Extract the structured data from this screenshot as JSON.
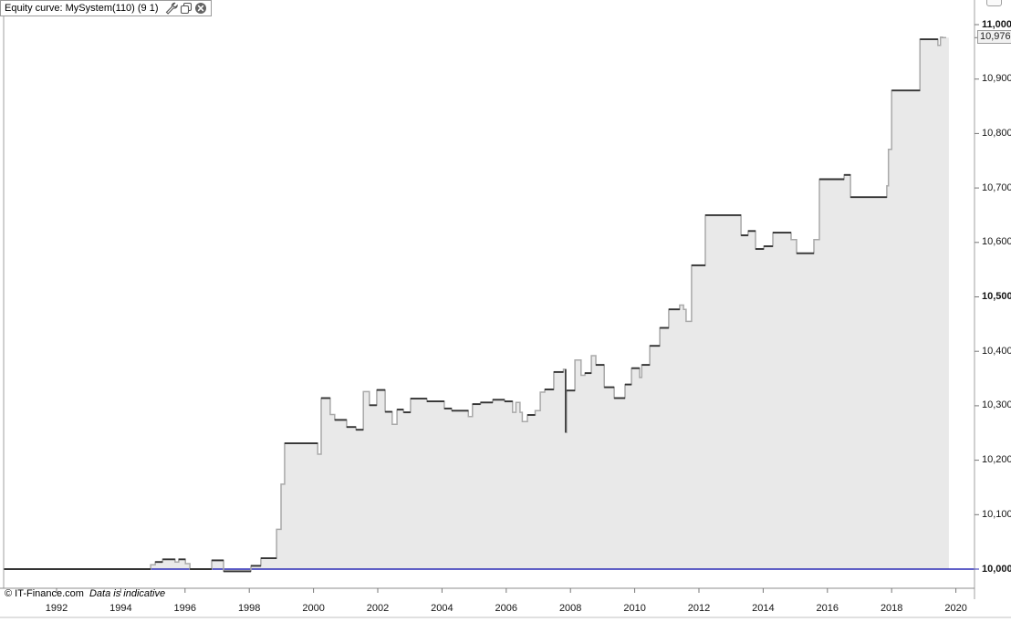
{
  "panel": {
    "title": "Equity curve: MySystem(110) (9 1)",
    "icons": [
      "wrench-icon",
      "duplicate-icon",
      "close-icon"
    ],
    "top_right_icon": "panel-handle-icon"
  },
  "footer": {
    "copyright": "© IT-Finance.com",
    "note": "Data is indicative"
  },
  "price_marker": {
    "label": "10,976"
  },
  "colors": {
    "baseline": "#2b2bb5",
    "curve_dark": "#333333",
    "curve_light": "#a9a9a9",
    "fill": "#e9e9e9",
    "border_gray": "#a0a0a0",
    "axis_line": "#8c8c8c",
    "bottom_line": "#c0c0c0",
    "marker_bg": "#f1f1f1",
    "text": "#141414"
  },
  "chart_data": {
    "type": "area",
    "interpolation": "step-after",
    "title": "Equity curve: MySystem(110) (9 1)",
    "grid": false,
    "x_axis": {
      "range": [
        1990.35,
        2020.58
      ],
      "ticks": [
        1992,
        1994,
        1996,
        1998,
        2000,
        2002,
        2004,
        2006,
        2008,
        2010,
        2012,
        2014,
        2016,
        2018,
        2020
      ]
    },
    "y_axis": {
      "range": [
        9965,
        11045
      ],
      "ticks": [
        {
          "value": 11000,
          "label": "11,000",
          "bold": true
        },
        {
          "value": 10900,
          "label": "10,900",
          "bold": false
        },
        {
          "value": 10800,
          "label": "10,800",
          "bold": false
        },
        {
          "value": 10700,
          "label": "10,700",
          "bold": false
        },
        {
          "value": 10600,
          "label": "10,600",
          "bold": false
        },
        {
          "value": 10500,
          "label": "10,500",
          "bold": true
        },
        {
          "value": 10400,
          "label": "10,400",
          "bold": false
        },
        {
          "value": 10300,
          "label": "10,300",
          "bold": false
        },
        {
          "value": 10200,
          "label": "10,200",
          "bold": false
        },
        {
          "value": 10100,
          "label": "10,100",
          "bold": false
        },
        {
          "value": 10000,
          "label": "10,000",
          "bold": true
        }
      ]
    },
    "baseline": {
      "value": 10000
    },
    "last_value": 10976,
    "series": [
      {
        "name": "MySystem(110) (9 1) equity",
        "end_year": 2019.7,
        "fill_end_year": 2019.78,
        "points": [
          [
            1990.35,
            10000
          ],
          [
            1994.93,
            10008
          ],
          [
            1995.07,
            10013
          ],
          [
            1995.3,
            10018
          ],
          [
            1995.69,
            10013
          ],
          [
            1995.8,
            10018
          ],
          [
            1996.01,
            10010
          ],
          [
            1996.15,
            10000
          ],
          [
            1996.83,
            10016
          ],
          [
            1997.2,
            9996
          ],
          [
            1998.05,
            10006
          ],
          [
            1998.36,
            10020
          ],
          [
            1998.85,
            10073
          ],
          [
            1998.99,
            10156
          ],
          [
            1999.1,
            10231
          ],
          [
            2000.13,
            10211
          ],
          [
            2000.24,
            10314
          ],
          [
            2000.52,
            10284
          ],
          [
            2000.66,
            10274
          ],
          [
            2001.03,
            10261
          ],
          [
            2001.32,
            10256
          ],
          [
            2001.55,
            10326
          ],
          [
            2001.74,
            10301
          ],
          [
            2001.97,
            10329
          ],
          [
            2002.23,
            10289
          ],
          [
            2002.45,
            10266
          ],
          [
            2002.6,
            10293
          ],
          [
            2002.8,
            10288
          ],
          [
            2003.02,
            10313
          ],
          [
            2003.53,
            10308
          ],
          [
            2004.07,
            10295
          ],
          [
            2004.3,
            10291
          ],
          [
            2004.82,
            10280
          ],
          [
            2004.95,
            10303
          ],
          [
            2005.2,
            10306
          ],
          [
            2005.58,
            10311
          ],
          [
            2005.95,
            10308
          ],
          [
            2006.2,
            10288
          ],
          [
            2006.3,
            10306
          ],
          [
            2006.43,
            10288
          ],
          [
            2006.5,
            10271
          ],
          [
            2006.66,
            10283
          ],
          [
            2006.9,
            10291
          ],
          [
            2007.06,
            10325
          ],
          [
            2007.2,
            10330
          ],
          [
            2007.48,
            10362
          ],
          [
            2007.78,
            10367
          ],
          [
            2007.85,
            10251
          ],
          [
            2007.88,
            10328
          ],
          [
            2008.14,
            10384
          ],
          [
            2008.33,
            10356
          ],
          [
            2008.45,
            10360
          ],
          [
            2008.65,
            10392
          ],
          [
            2008.79,
            10375
          ],
          [
            2009.05,
            10334
          ],
          [
            2009.36,
            10314
          ],
          [
            2009.7,
            10339
          ],
          [
            2009.9,
            10369
          ],
          [
            2010.15,
            10352
          ],
          [
            2010.22,
            10375
          ],
          [
            2010.47,
            10410
          ],
          [
            2010.78,
            10443
          ],
          [
            2011.06,
            10477
          ],
          [
            2011.4,
            10485
          ],
          [
            2011.52,
            10477
          ],
          [
            2011.6,
            10455
          ],
          [
            2011.77,
            10558
          ],
          [
            2012.2,
            10650
          ],
          [
            2013.31,
            10613
          ],
          [
            2013.53,
            10621
          ],
          [
            2013.76,
            10588
          ],
          [
            2014.02,
            10593
          ],
          [
            2014.3,
            10618
          ],
          [
            2014.87,
            10605
          ],
          [
            2015.04,
            10580
          ],
          [
            2015.58,
            10605
          ],
          [
            2015.75,
            10716
          ],
          [
            2016.52,
            10724
          ],
          [
            2016.72,
            10683
          ],
          [
            2017.85,
            10704
          ],
          [
            2017.9,
            10771
          ],
          [
            2018.0,
            10879
          ],
          [
            2018.88,
            10973
          ],
          [
            2019.44,
            10962
          ],
          [
            2019.52,
            10977
          ],
          [
            2019.58,
            10976
          ]
        ]
      }
    ]
  }
}
